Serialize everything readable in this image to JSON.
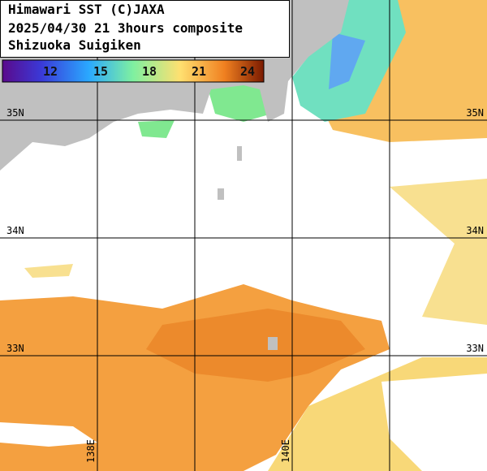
{
  "header": {
    "lines": [
      "Himawari SST (C)JAXA",
      "2025/04/30 21 3hours composite",
      "Shizuoka Suigiken"
    ]
  },
  "colorbar": {
    "labels": [
      "12",
      "15",
      "18",
      "21",
      "24"
    ]
  },
  "lat_labels": {
    "left": [
      "35N",
      "34N",
      "33N"
    ],
    "right": [
      "35N",
      "34N",
      "33N"
    ]
  },
  "lon_labels": [
    "138E",
    "140E"
  ]
}
